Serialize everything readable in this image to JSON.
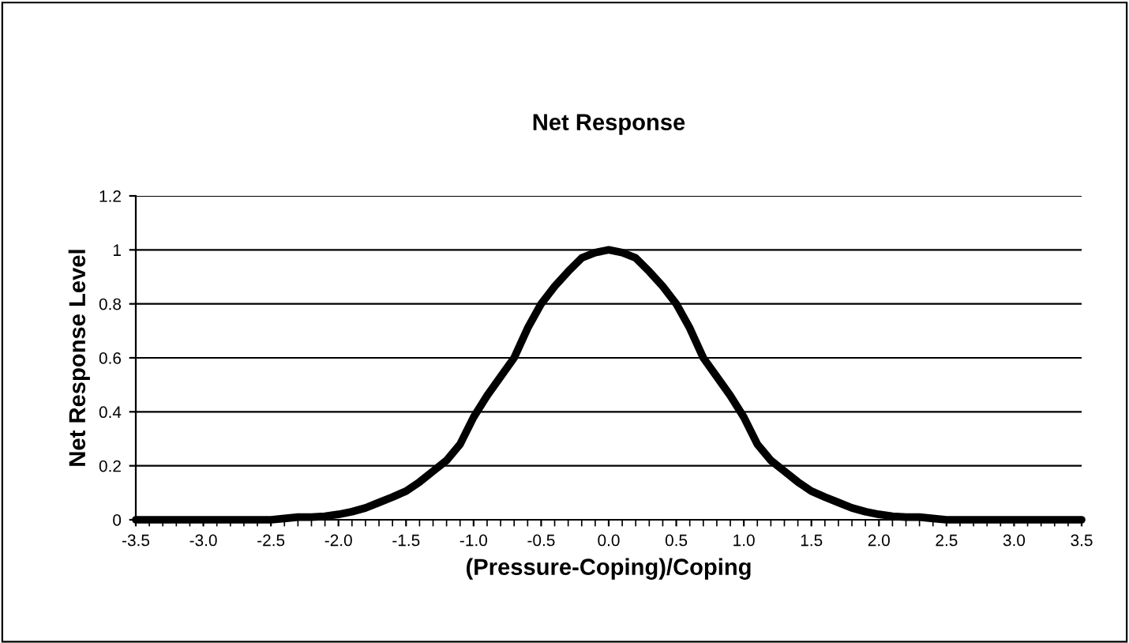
{
  "chart_data": {
    "type": "line",
    "title": "Net Response",
    "xlabel": "(Pressure-Coping)/Coping",
    "ylabel": "Net Response Level",
    "x": [
      -3.5,
      -3.4,
      -3.3,
      -3.2,
      -3.1,
      -3.0,
      -2.9,
      -2.8,
      -2.7,
      -2.6,
      -2.5,
      -2.4,
      -2.3,
      -2.2,
      -2.1,
      -2.0,
      -1.9,
      -1.8,
      -1.7,
      -1.6,
      -1.5,
      -1.4,
      -1.3,
      -1.2,
      -1.1,
      -1.0,
      -0.9,
      -0.8,
      -0.7,
      -0.6,
      -0.5,
      -0.4,
      -0.3,
      -0.2,
      -0.1,
      0.0,
      0.1,
      0.2,
      0.3,
      0.4,
      0.5,
      0.6,
      0.7,
      0.8,
      0.9,
      1.0,
      1.1,
      1.2,
      1.3,
      1.4,
      1.5,
      1.6,
      1.7,
      1.8,
      1.9,
      2.0,
      2.1,
      2.2,
      2.3,
      2.4,
      2.5,
      2.6,
      2.7,
      2.8,
      2.9,
      3.0,
      3.1,
      3.2,
      3.3,
      3.4,
      3.5
    ],
    "series": [
      {
        "color": "#000000",
        "values": [
          0,
          0,
          0,
          0,
          0,
          0,
          0,
          0,
          0,
          0,
          0,
          0.005,
          0.01,
          0.01,
          0.013,
          0.02,
          0.03,
          0.044,
          0.064,
          0.084,
          0.106,
          0.14,
          0.18,
          0.22,
          0.28,
          0.38,
          0.46,
          0.53,
          0.6,
          0.71,
          0.8,
          0.865,
          0.92,
          0.97,
          0.99,
          1.0,
          0.99,
          0.97,
          0.92,
          0.865,
          0.8,
          0.71,
          0.6,
          0.53,
          0.46,
          0.38,
          0.28,
          0.22,
          0.18,
          0.14,
          0.106,
          0.084,
          0.064,
          0.044,
          0.03,
          0.02,
          0.013,
          0.01,
          0.01,
          0.005,
          0,
          0,
          0,
          0,
          0,
          0,
          0,
          0,
          0,
          0,
          0
        ]
      }
    ],
    "xlim": [
      -3.5,
      3.5
    ],
    "xticks": [
      {
        "value": -3.5,
        "label": "-3.5"
      },
      {
        "value": -3,
        "label": "-3.0"
      },
      {
        "value": -2.5,
        "label": "-2.5"
      },
      {
        "value": -2,
        "label": "-2.0"
      },
      {
        "value": -1.5,
        "label": "-1.5"
      },
      {
        "value": -1,
        "label": "-1.0"
      },
      {
        "value": -0.5,
        "label": "-0.5"
      },
      {
        "value": 0,
        "label": "0.0"
      },
      {
        "value": 0.5,
        "label": "0.5"
      },
      {
        "value": 1,
        "label": "1.0"
      },
      {
        "value": 1.5,
        "label": "1.5"
      },
      {
        "value": 2,
        "label": "2.0"
      },
      {
        "value": 2.5,
        "label": "2.5"
      },
      {
        "value": 3,
        "label": "3.0"
      },
      {
        "value": 3.5,
        "label": "3.5"
      }
    ],
    "ylim": [
      0,
      1.2
    ],
    "yticks": [
      0,
      0.2,
      0.4,
      0.6,
      0.8,
      1,
      1.2
    ],
    "grid": "y",
    "marker": "none",
    "line_style": "solid"
  }
}
